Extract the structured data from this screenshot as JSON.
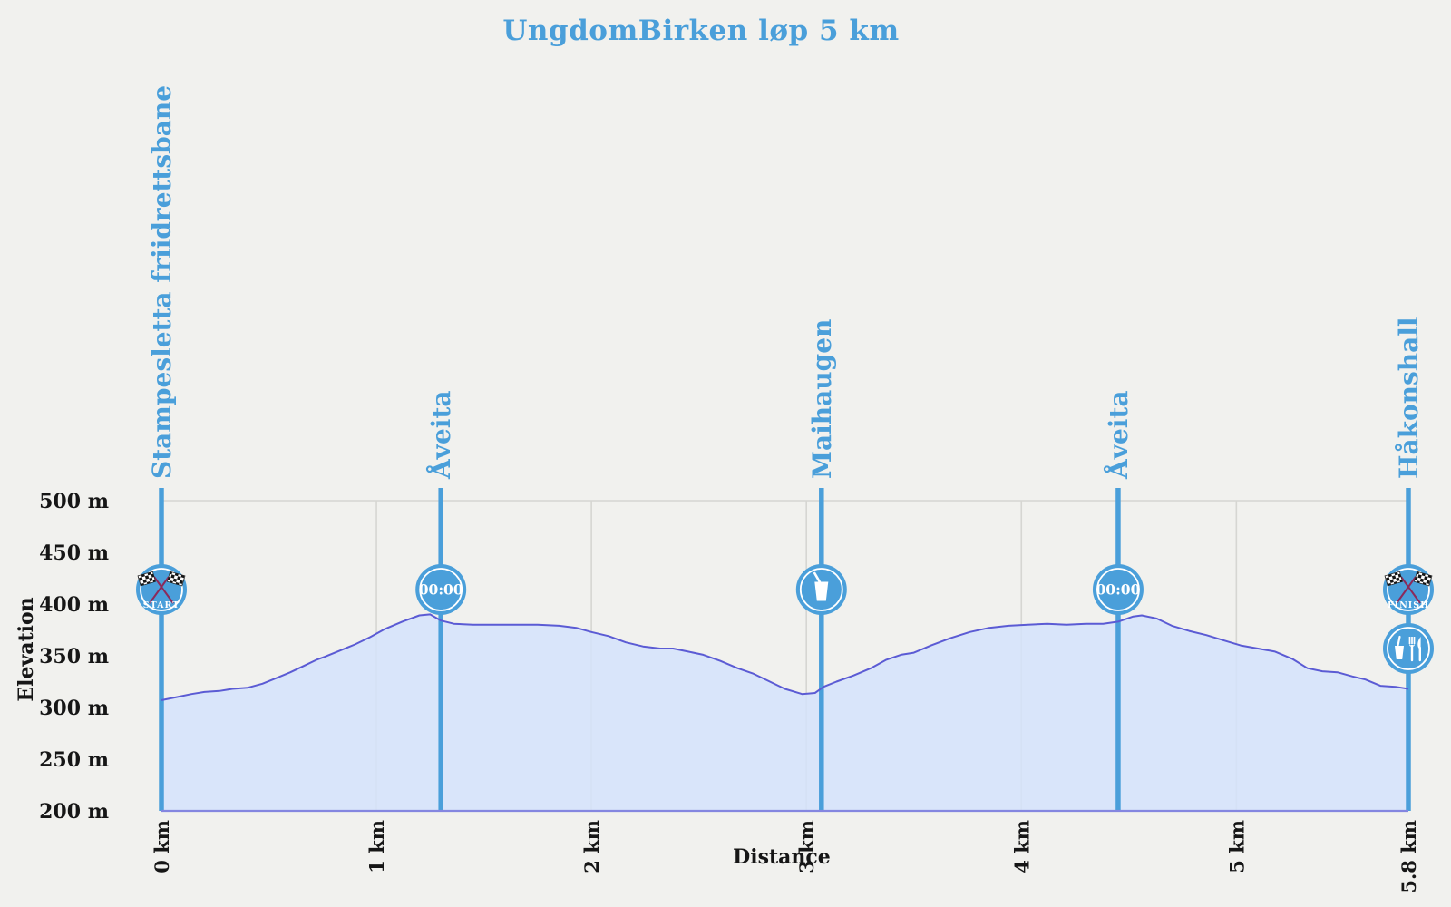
{
  "title": "UngdomBirken løp 5 km",
  "colors": {
    "accent": "#4a9fda",
    "curve_line": "#5b5bd4",
    "area_fill": "#d5e3fb",
    "grid": "#d6d6d2",
    "background": "#f1f1ee",
    "axis_text": "#161616",
    "icon_text": "#ffffff",
    "flag_pole": "#8b2a5b",
    "flag_dark": "#141414"
  },
  "chart_data": {
    "type": "area",
    "title": "UngdomBirken løp 5 km",
    "xlabel": "Distance",
    "ylabel": "Elevation",
    "x_unit": "km",
    "y_unit": "m",
    "xlim": [
      0,
      5.8
    ],
    "ylim": [
      200,
      500
    ],
    "grid": "vertical-only",
    "x_ticks": [
      {
        "value": 0,
        "label": "0 km",
        "grid": false
      },
      {
        "value": 1,
        "label": "1 km",
        "grid": true
      },
      {
        "value": 2,
        "label": "2 km",
        "grid": true
      },
      {
        "value": 3,
        "label": "3 km",
        "grid": true
      },
      {
        "value": 4,
        "label": "4 km",
        "grid": true
      },
      {
        "value": 5,
        "label": "5 km",
        "grid": true
      },
      {
        "value": 5.8,
        "label": "5.8 km",
        "grid": false
      }
    ],
    "y_ticks": [
      {
        "value": 500,
        "label": "500 m"
      },
      {
        "value": 450,
        "label": "450 m"
      },
      {
        "value": 400,
        "label": "400 m"
      },
      {
        "value": 350,
        "label": "350 m"
      },
      {
        "value": 300,
        "label": "300 m"
      },
      {
        "value": 250,
        "label": "250 m"
      },
      {
        "value": 200,
        "label": "200 m"
      }
    ],
    "series": [
      {
        "name": "elevation-profile",
        "points": [
          [
            0,
            307
          ],
          [
            0.07,
            310
          ],
          [
            0.14,
            313
          ],
          [
            0.2,
            315
          ],
          [
            0.27,
            316
          ],
          [
            0.33,
            318
          ],
          [
            0.4,
            319
          ],
          [
            0.47,
            323
          ],
          [
            0.53,
            328
          ],
          [
            0.6,
            334
          ],
          [
            0.67,
            341
          ],
          [
            0.72,
            346
          ],
          [
            0.76,
            349
          ],
          [
            0.83,
            355
          ],
          [
            0.9,
            361
          ],
          [
            0.97,
            368
          ],
          [
            1.04,
            376
          ],
          [
            1.12,
            383
          ],
          [
            1.2,
            389
          ],
          [
            1.25,
            390
          ],
          [
            1.3,
            384
          ],
          [
            1.36,
            381
          ],
          [
            1.45,
            380
          ],
          [
            1.55,
            380
          ],
          [
            1.65,
            380
          ],
          [
            1.75,
            380
          ],
          [
            1.85,
            379
          ],
          [
            1.93,
            377
          ],
          [
            2.0,
            373
          ],
          [
            2.08,
            369
          ],
          [
            2.16,
            363
          ],
          [
            2.24,
            359
          ],
          [
            2.32,
            357
          ],
          [
            2.38,
            357
          ],
          [
            2.45,
            354
          ],
          [
            2.52,
            351
          ],
          [
            2.6,
            345
          ],
          [
            2.68,
            338
          ],
          [
            2.75,
            333
          ],
          [
            2.83,
            325
          ],
          [
            2.9,
            318
          ],
          [
            2.98,
            313
          ],
          [
            3.04,
            314
          ],
          [
            3.08,
            320
          ],
          [
            3.14,
            325
          ],
          [
            3.22,
            331
          ],
          [
            3.3,
            338
          ],
          [
            3.37,
            346
          ],
          [
            3.44,
            351
          ],
          [
            3.5,
            353
          ],
          [
            3.58,
            360
          ],
          [
            3.67,
            367
          ],
          [
            3.76,
            373
          ],
          [
            3.85,
            377
          ],
          [
            3.94,
            379
          ],
          [
            4.03,
            380
          ],
          [
            4.12,
            381
          ],
          [
            4.21,
            380
          ],
          [
            4.3,
            381
          ],
          [
            4.38,
            381
          ],
          [
            4.45,
            383
          ],
          [
            4.52,
            388
          ],
          [
            4.56,
            389
          ],
          [
            4.63,
            386
          ],
          [
            4.7,
            379
          ],
          [
            4.78,
            374
          ],
          [
            4.86,
            370
          ],
          [
            4.94,
            365
          ],
          [
            5.02,
            360
          ],
          [
            5.1,
            357
          ],
          [
            5.18,
            354
          ],
          [
            5.26,
            347
          ],
          [
            5.33,
            338
          ],
          [
            5.4,
            335
          ],
          [
            5.47,
            334
          ],
          [
            5.54,
            330
          ],
          [
            5.6,
            327
          ],
          [
            5.67,
            321
          ],
          [
            5.74,
            320
          ],
          [
            5.8,
            318
          ]
        ]
      }
    ],
    "waypoints": [
      {
        "name": "Stampesletta friidrettsbane",
        "km": 0,
        "icons": [
          {
            "type": "flags",
            "label": "START"
          }
        ]
      },
      {
        "name": "Åveita",
        "km": 1.3,
        "icons": [
          {
            "type": "timer",
            "label": "00:00"
          }
        ]
      },
      {
        "name": "Maihaugen",
        "km": 3.07,
        "icons": [
          {
            "type": "drink"
          }
        ]
      },
      {
        "name": "Åveita",
        "km": 4.45,
        "icons": [
          {
            "type": "timer",
            "label": "00:00"
          }
        ]
      },
      {
        "name": "Håkonshall",
        "km": 5.8,
        "icons": [
          {
            "type": "flags",
            "label": "FINISH"
          },
          {
            "type": "food"
          }
        ]
      }
    ]
  }
}
